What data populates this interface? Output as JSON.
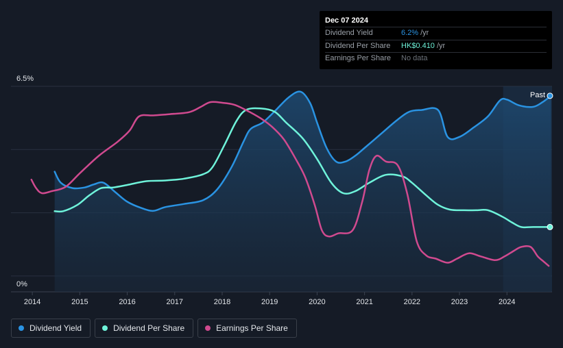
{
  "tooltip": {
    "date": "Dec 07 2024",
    "rows": [
      {
        "label": "Dividend Yield",
        "value": "6.2%",
        "unit": "/yr"
      },
      {
        "label": "Dividend Per Share",
        "value": "HK$0.410",
        "unit": "/yr"
      },
      {
        "label": "Earnings Per Share",
        "value": "No data",
        "unit": ""
      }
    ]
  },
  "legend": [
    {
      "label": "Dividend Yield",
      "color": "#2a93e2"
    },
    {
      "label": "Dividend Per Share",
      "color": "#6ff3da"
    },
    {
      "label": "Earnings Per Share",
      "color": "#d04a8f"
    }
  ],
  "chart_data": {
    "type": "line",
    "y_top_label": "6.5%",
    "y_bottom_label": "0%",
    "ylim": [
      0,
      6.5
    ],
    "xlim": [
      2013.55,
      2024.95
    ],
    "x_ticks": [
      "2014",
      "2015",
      "2016",
      "2017",
      "2018",
      "2019",
      "2020",
      "2021",
      "2022",
      "2023",
      "2024"
    ],
    "past_label": "Past",
    "past_region_start": 2023.92,
    "grid": true,
    "series": [
      {
        "name": "Dividend Yield",
        "color": "#2a93e2",
        "fill": true,
        "unit": "%",
        "points": [
          [
            2014.47,
            3.8
          ],
          [
            2014.6,
            3.45
          ],
          [
            2014.85,
            3.28
          ],
          [
            2015.1,
            3.3
          ],
          [
            2015.3,
            3.4
          ],
          [
            2015.5,
            3.45
          ],
          [
            2015.75,
            3.15
          ],
          [
            2016.0,
            2.85
          ],
          [
            2016.3,
            2.65
          ],
          [
            2016.55,
            2.56
          ],
          [
            2016.8,
            2.68
          ],
          [
            2017.2,
            2.78
          ],
          [
            2017.6,
            2.9
          ],
          [
            2017.9,
            3.25
          ],
          [
            2018.2,
            3.95
          ],
          [
            2018.45,
            4.75
          ],
          [
            2018.6,
            5.15
          ],
          [
            2018.85,
            5.35
          ],
          [
            2019.1,
            5.7
          ],
          [
            2019.4,
            6.15
          ],
          [
            2019.65,
            6.33
          ],
          [
            2019.85,
            5.98
          ],
          [
            2020.0,
            5.35
          ],
          [
            2020.2,
            4.55
          ],
          [
            2020.4,
            4.12
          ],
          [
            2020.6,
            4.12
          ],
          [
            2020.8,
            4.3
          ],
          [
            2021.0,
            4.55
          ],
          [
            2021.35,
            5.0
          ],
          [
            2021.7,
            5.45
          ],
          [
            2021.95,
            5.7
          ],
          [
            2022.2,
            5.75
          ],
          [
            2022.55,
            5.75
          ],
          [
            2022.75,
            4.9
          ],
          [
            2023.0,
            4.9
          ],
          [
            2023.3,
            5.2
          ],
          [
            2023.6,
            5.55
          ],
          [
            2023.85,
            6.05
          ],
          [
            2024.0,
            6.08
          ],
          [
            2024.25,
            5.9
          ],
          [
            2024.55,
            5.85
          ],
          [
            2024.75,
            6.0
          ],
          [
            2024.93,
            6.2
          ]
        ]
      },
      {
        "name": "Dividend Per Share",
        "color": "#6ff3da",
        "fill": false,
        "unit": "HK$",
        "points": [
          [
            2014.47,
            2.55
          ],
          [
            2014.65,
            2.55
          ],
          [
            2014.95,
            2.75
          ],
          [
            2015.2,
            3.05
          ],
          [
            2015.45,
            3.28
          ],
          [
            2015.7,
            3.3
          ],
          [
            2016.0,
            3.38
          ],
          [
            2016.4,
            3.5
          ],
          [
            2016.8,
            3.52
          ],
          [
            2017.2,
            3.58
          ],
          [
            2017.6,
            3.72
          ],
          [
            2017.8,
            3.95
          ],
          [
            2018.05,
            4.65
          ],
          [
            2018.3,
            5.4
          ],
          [
            2018.5,
            5.75
          ],
          [
            2018.8,
            5.8
          ],
          [
            2019.1,
            5.7
          ],
          [
            2019.35,
            5.35
          ],
          [
            2019.7,
            4.85
          ],
          [
            2020.0,
            4.2
          ],
          [
            2020.3,
            3.45
          ],
          [
            2020.55,
            3.12
          ],
          [
            2020.8,
            3.18
          ],
          [
            2021.1,
            3.45
          ],
          [
            2021.45,
            3.7
          ],
          [
            2021.8,
            3.65
          ],
          [
            2022.0,
            3.45
          ],
          [
            2022.3,
            3.05
          ],
          [
            2022.55,
            2.75
          ],
          [
            2022.8,
            2.6
          ],
          [
            2023.1,
            2.58
          ],
          [
            2023.35,
            2.58
          ],
          [
            2023.6,
            2.58
          ],
          [
            2023.9,
            2.38
          ],
          [
            2024.1,
            2.2
          ],
          [
            2024.3,
            2.05
          ],
          [
            2024.55,
            2.05
          ],
          [
            2024.93,
            2.05
          ]
        ]
      },
      {
        "name": "Earnings Per Share",
        "color": "#d04a8f",
        "fill": false,
        "unit": "HK$",
        "points": [
          [
            2013.98,
            3.55
          ],
          [
            2014.08,
            3.28
          ],
          [
            2014.2,
            3.12
          ],
          [
            2014.4,
            3.18
          ],
          [
            2014.7,
            3.32
          ],
          [
            2015.0,
            3.75
          ],
          [
            2015.4,
            4.3
          ],
          [
            2015.8,
            4.75
          ],
          [
            2016.05,
            5.1
          ],
          [
            2016.25,
            5.55
          ],
          [
            2016.55,
            5.58
          ],
          [
            2016.9,
            5.62
          ],
          [
            2017.3,
            5.68
          ],
          [
            2017.55,
            5.85
          ],
          [
            2017.75,
            6.0
          ],
          [
            2018.0,
            5.98
          ],
          [
            2018.25,
            5.92
          ],
          [
            2018.5,
            5.75
          ],
          [
            2018.8,
            5.5
          ],
          [
            2019.05,
            5.22
          ],
          [
            2019.3,
            4.82
          ],
          [
            2019.55,
            4.2
          ],
          [
            2019.75,
            3.62
          ],
          [
            2019.95,
            2.75
          ],
          [
            2020.1,
            1.95
          ],
          [
            2020.25,
            1.75
          ],
          [
            2020.45,
            1.85
          ],
          [
            2020.75,
            1.95
          ],
          [
            2020.95,
            2.85
          ],
          [
            2021.1,
            3.85
          ],
          [
            2021.25,
            4.3
          ],
          [
            2021.45,
            4.12
          ],
          [
            2021.7,
            4.0
          ],
          [
            2021.9,
            3.1
          ],
          [
            2022.1,
            1.6
          ],
          [
            2022.3,
            1.15
          ],
          [
            2022.5,
            1.05
          ],
          [
            2022.75,
            0.92
          ],
          [
            2022.95,
            1.05
          ],
          [
            2023.2,
            1.22
          ],
          [
            2023.45,
            1.12
          ],
          [
            2023.75,
            1.0
          ],
          [
            2023.95,
            1.12
          ],
          [
            2024.15,
            1.3
          ],
          [
            2024.3,
            1.42
          ],
          [
            2024.5,
            1.42
          ],
          [
            2024.65,
            1.12
          ],
          [
            2024.78,
            0.95
          ],
          [
            2024.88,
            0.82
          ]
        ]
      }
    ]
  }
}
